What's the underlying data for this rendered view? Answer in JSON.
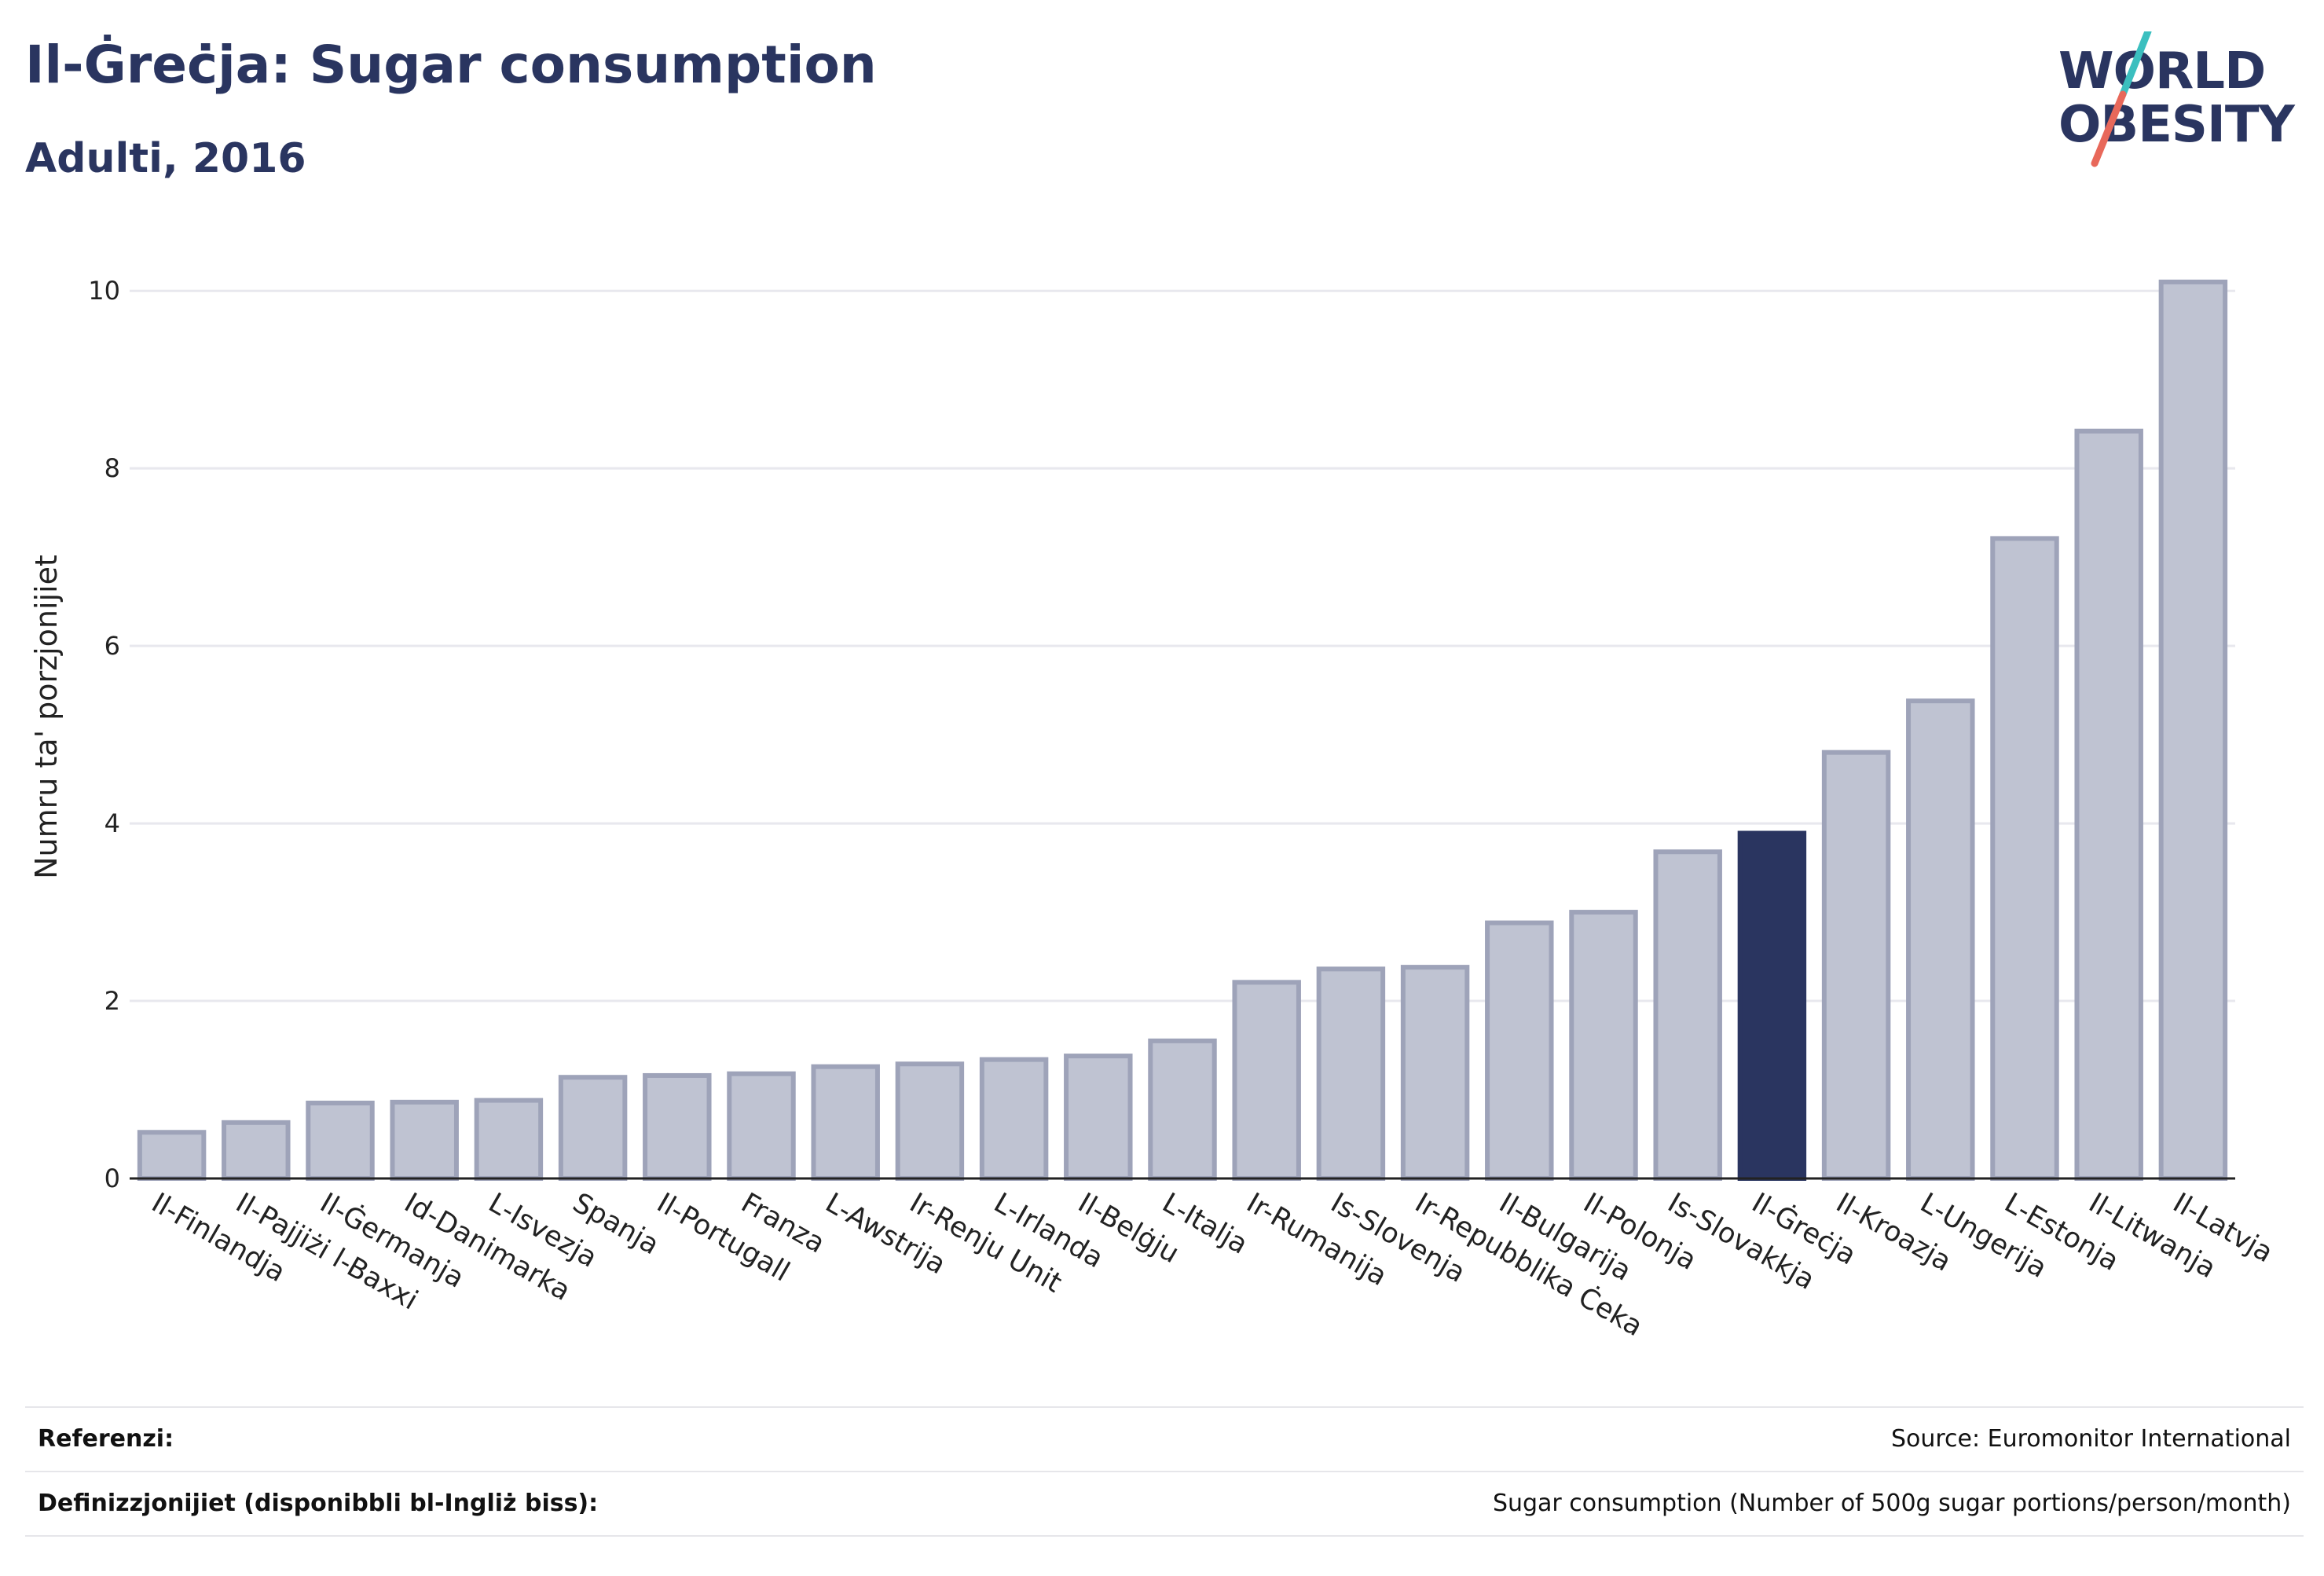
{
  "header": {
    "title": "Il-Ġreċja: Sugar consumption",
    "subtitle": "Adulti, 2016"
  },
  "logo": {
    "line1": "WORLD",
    "line2": "OBESITY",
    "colors": {
      "text": "#2a3560",
      "slash_top": "#3bbfbf",
      "slash_bottom": "#e8685a"
    }
  },
  "chart_data": {
    "type": "bar",
    "ylabel": "Numru ta' porzjonijiet",
    "xlabel": "",
    "ylim": [
      0,
      10.4
    ],
    "yticks": [
      0,
      2,
      4,
      6,
      8,
      10
    ],
    "grid": true,
    "highlight": "Il-Ġreċja",
    "colors": {
      "bar": "#bfc3d2",
      "bar_edge": "#9ea3b9",
      "highlight": "#2a3560",
      "grid": "#e8e8ee"
    },
    "categories": [
      "Il-Finlandja",
      "Il-Pajjiżi l-Baxxi",
      "Il-Ġermanja",
      "Id-Danimarka",
      "L-Isvezja",
      "Spanja",
      "Il-Portugall",
      "Franza",
      "L-Awstrija",
      "Ir-Renju Unit",
      "L-Irlanda",
      "Il-Belġju",
      "L-Italja",
      "Ir-Rumanija",
      "Is-Slovenja",
      "Ir-Repubblika Ċeka",
      "Il-Bulgarija",
      "Il-Polonja",
      "Is-Slovakkja",
      "Il-Ġreċja",
      "Il-Kroazja",
      "L-Ungerija",
      "L-Estonja",
      "Il-Litwanja",
      "Il-Latvja"
    ],
    "values": [
      0.52,
      0.63,
      0.85,
      0.86,
      0.88,
      1.14,
      1.16,
      1.18,
      1.26,
      1.29,
      1.34,
      1.38,
      1.55,
      2.21,
      2.36,
      2.38,
      2.88,
      3.0,
      3.68,
      3.89,
      4.8,
      5.38,
      7.21,
      8.42,
      10.1
    ]
  },
  "footer": {
    "references_label": "Referenzi:",
    "references_value": "Source: Euromonitor International",
    "definitions_label": "Definizzjonijiet (disponibbli bl-Ingliż biss):",
    "definitions_value": "Sugar consumption (Number of 500g sugar portions/person/month)"
  }
}
